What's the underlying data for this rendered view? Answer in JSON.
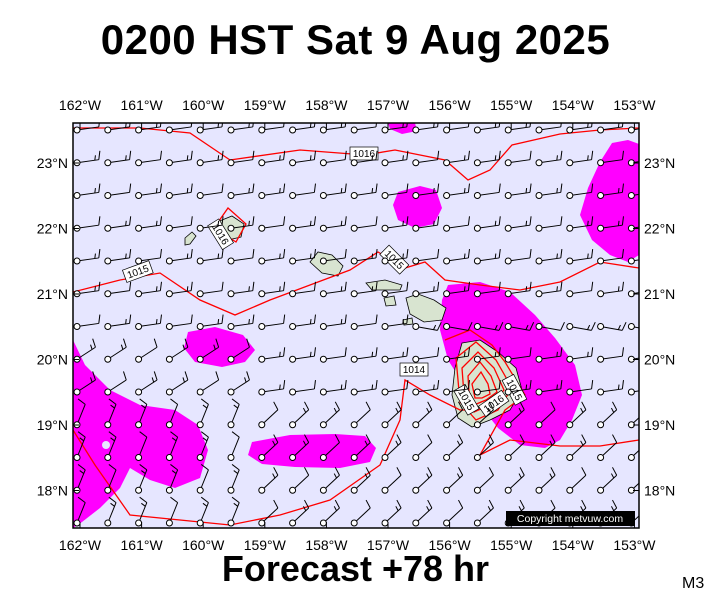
{
  "header": {
    "title": "0200 HST Sat 9 Aug 2025"
  },
  "footer": {
    "subtitle": "Forecast +78 hr",
    "model_label": "M3"
  },
  "copyright": "Copyright metvuw.com",
  "map": {
    "lon_labels": [
      "162°W",
      "161°W",
      "160°W",
      "159°W",
      "158°W",
      "157°W",
      "156°W",
      "155°W",
      "154°W",
      "153°W"
    ],
    "lat_labels": [
      "23°N",
      "22°N",
      "21°N",
      "20°N",
      "19°N",
      "18°N"
    ],
    "isobar_labels": [
      "1016",
      "1016",
      "1015",
      "1015",
      "1014",
      "1015",
      "1016",
      "1015"
    ],
    "colors": {
      "background": "#e6e6ff",
      "precip": "#ff00ff",
      "isobar": "#ff0000",
      "land": "#d8e4d0",
      "frame": "#000000"
    }
  }
}
